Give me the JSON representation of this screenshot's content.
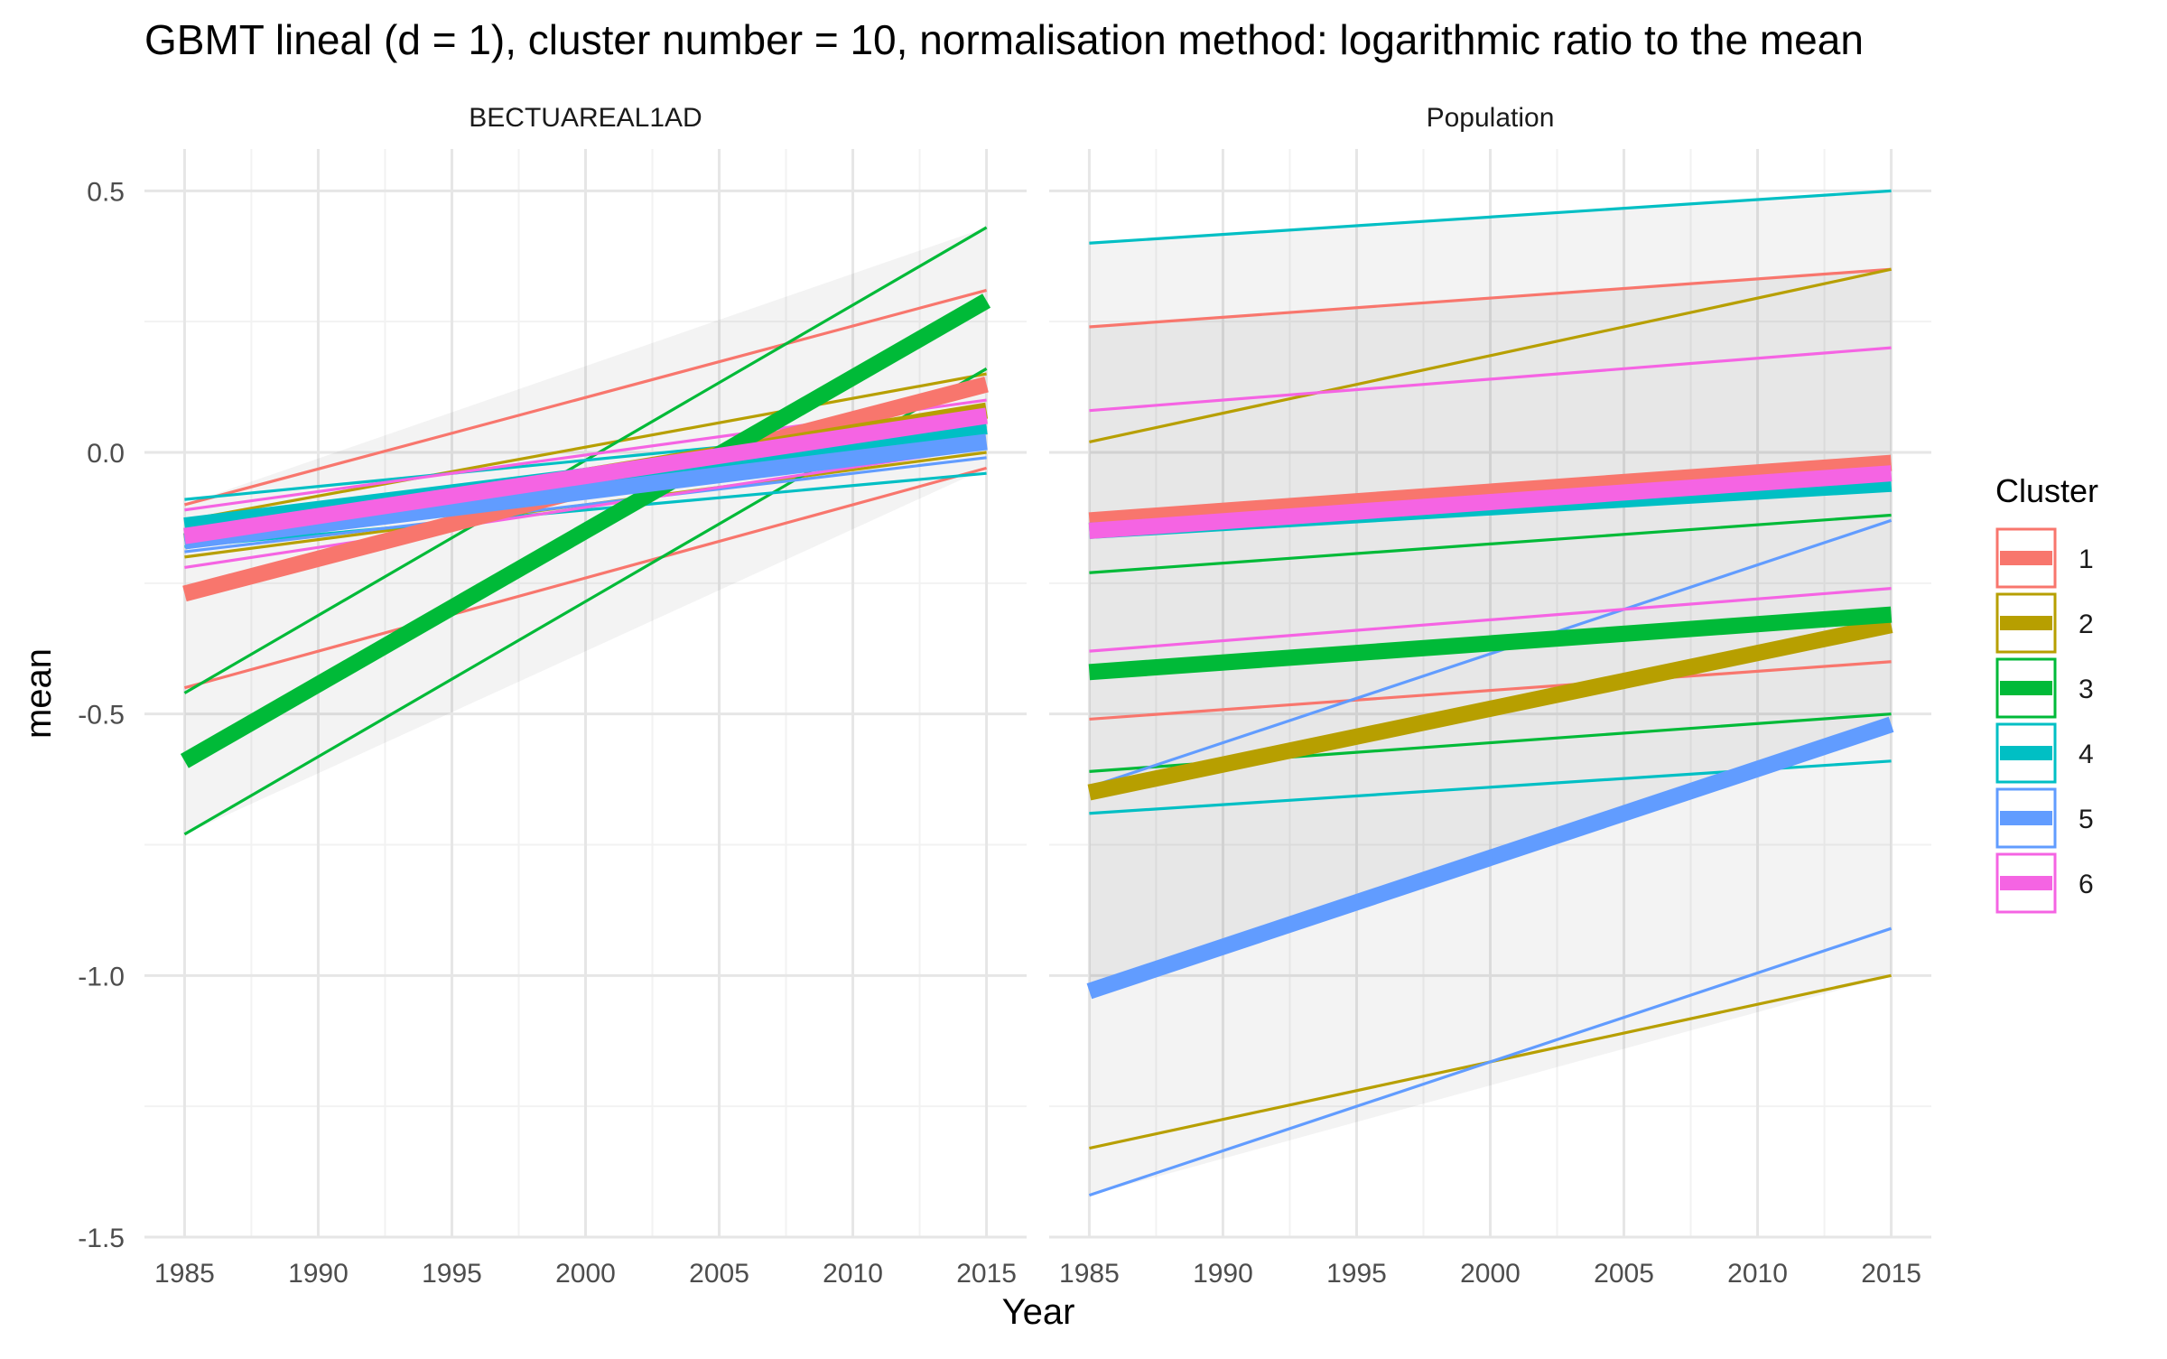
{
  "chart_data": {
    "type": "line",
    "title": "GBMT lineal (d = 1), cluster number = 10, normalisation method: logarithmic ratio to the mean",
    "xlabel": "Year",
    "ylabel": "mean",
    "xlim": [
      1983.5,
      2016.5
    ],
    "ylim": [
      -1.5,
      0.58
    ],
    "x_ticks": [
      1985,
      1990,
      1995,
      2000,
      2005,
      2010,
      2015
    ],
    "y_ticks": [
      -1.5,
      -1.0,
      -0.5,
      0.0,
      0.5
    ],
    "y_tick_labels": [
      "-1.5",
      "-1.0",
      "-0.5",
      "0.0",
      "0.5"
    ],
    "grid": true,
    "legend_title": "Cluster",
    "legend_position": "right",
    "legend": [
      {
        "label": "1",
        "color": "#F8766D"
      },
      {
        "label": "2",
        "color": "#B79F00"
      },
      {
        "label": "3",
        "color": "#00BA38"
      },
      {
        "label": "4",
        "color": "#00BFC4"
      },
      {
        "label": "5",
        "color": "#619CFF"
      },
      {
        "label": "6",
        "color": "#F564E3"
      }
    ],
    "panels": [
      {
        "name": "BECTUAREAL1AD",
        "bands": [
          {
            "x": [
              1985,
              2015
            ],
            "upper": [
              -0.1,
              0.43
            ],
            "lower": [
              -0.73,
              -0.03
            ]
          }
        ],
        "series": [
          {
            "cluster": "1",
            "kind": "mean",
            "x": [
              1985,
              2015
            ],
            "y": [
              -0.27,
              0.13
            ]
          },
          {
            "cluster": "1",
            "kind": "upper",
            "x": [
              1985,
              2015
            ],
            "y": [
              -0.1,
              0.31
            ]
          },
          {
            "cluster": "1",
            "kind": "lower",
            "x": [
              1985,
              2015
            ],
            "y": [
              -0.45,
              -0.03
            ]
          },
          {
            "cluster": "2",
            "kind": "mean",
            "x": [
              1985,
              2015
            ],
            "y": [
              -0.17,
              0.08
            ]
          },
          {
            "cluster": "2",
            "kind": "upper",
            "x": [
              1985,
              2015
            ],
            "y": [
              -0.13,
              0.15
            ]
          },
          {
            "cluster": "2",
            "kind": "lower",
            "x": [
              1985,
              2015
            ],
            "y": [
              -0.2,
              0.0
            ]
          },
          {
            "cluster": "3",
            "kind": "mean",
            "x": [
              1985,
              2015
            ],
            "y": [
              -0.59,
              0.29
            ]
          },
          {
            "cluster": "3",
            "kind": "upper",
            "x": [
              1985,
              2015
            ],
            "y": [
              -0.46,
              0.43
            ]
          },
          {
            "cluster": "3",
            "kind": "lower",
            "x": [
              1985,
              2015
            ],
            "y": [
              -0.73,
              0.16
            ]
          },
          {
            "cluster": "4",
            "kind": "mean",
            "x": [
              1985,
              2015
            ],
            "y": [
              -0.14,
              0.05
            ]
          },
          {
            "cluster": "4",
            "kind": "upper",
            "x": [
              1985,
              2015
            ],
            "y": [
              -0.09,
              0.06
            ]
          },
          {
            "cluster": "4",
            "kind": "lower",
            "x": [
              1985,
              2015
            ],
            "y": [
              -0.18,
              -0.04
            ]
          },
          {
            "cluster": "5",
            "kind": "mean",
            "x": [
              1985,
              2015
            ],
            "y": [
              -0.17,
              0.02
            ]
          },
          {
            "cluster": "5",
            "kind": "upper",
            "x": [
              1985,
              2015
            ],
            "y": [
              -0.15,
              0.05
            ]
          },
          {
            "cluster": "5",
            "kind": "lower",
            "x": [
              1985,
              2015
            ],
            "y": [
              -0.19,
              -0.01
            ]
          },
          {
            "cluster": "6",
            "kind": "mean",
            "x": [
              1985,
              2015
            ],
            "y": [
              -0.16,
              0.07
            ]
          },
          {
            "cluster": "6",
            "kind": "upper",
            "x": [
              1985,
              2015
            ],
            "y": [
              -0.11,
              0.1
            ]
          },
          {
            "cluster": "6",
            "kind": "lower",
            "x": [
              1985,
              2015
            ],
            "y": [
              -0.22,
              0.01
            ]
          }
        ]
      },
      {
        "name": "Population",
        "bands": [
          {
            "x": [
              1985,
              2015
            ],
            "upper": [
              0.4,
              0.5
            ],
            "lower": [
              -1.42,
              -1.0
            ]
          },
          {
            "x": [
              1985,
              2015
            ],
            "upper": [
              0.24,
              0.35
            ],
            "lower": [
              -1.03,
              -0.52
            ]
          }
        ],
        "series": [
          {
            "cluster": "1",
            "kind": "mean",
            "x": [
              1985,
              2015
            ],
            "y": [
              -0.13,
              -0.02
            ]
          },
          {
            "cluster": "1",
            "kind": "upper",
            "x": [
              1985,
              2015
            ],
            "y": [
              0.24,
              0.35
            ]
          },
          {
            "cluster": "1",
            "kind": "lower",
            "x": [
              1985,
              2015
            ],
            "y": [
              -0.51,
              -0.4
            ]
          },
          {
            "cluster": "2",
            "kind": "mean",
            "x": [
              1985,
              2015
            ],
            "y": [
              -0.65,
              -0.33
            ]
          },
          {
            "cluster": "2",
            "kind": "upper",
            "x": [
              1985,
              2015
            ],
            "y": [
              0.02,
              0.35
            ]
          },
          {
            "cluster": "2",
            "kind": "lower",
            "x": [
              1985,
              2015
            ],
            "y": [
              -1.33,
              -1.0
            ]
          },
          {
            "cluster": "3",
            "kind": "mean",
            "x": [
              1985,
              2015
            ],
            "y": [
              -0.42,
              -0.31
            ]
          },
          {
            "cluster": "3",
            "kind": "upper",
            "x": [
              1985,
              2015
            ],
            "y": [
              -0.23,
              -0.12
            ]
          },
          {
            "cluster": "3",
            "kind": "lower",
            "x": [
              1985,
              2015
            ],
            "y": [
              -0.61,
              -0.5
            ]
          },
          {
            "cluster": "4",
            "kind": "mean",
            "x": [
              1985,
              2015
            ],
            "y": [
              -0.15,
              -0.06
            ]
          },
          {
            "cluster": "4",
            "kind": "upper",
            "x": [
              1985,
              2015
            ],
            "y": [
              0.4,
              0.5
            ]
          },
          {
            "cluster": "4",
            "kind": "lower",
            "x": [
              1985,
              2015
            ],
            "y": [
              -0.69,
              -0.59
            ]
          },
          {
            "cluster": "5",
            "kind": "mean",
            "x": [
              1985,
              2015
            ],
            "y": [
              -1.03,
              -0.52
            ]
          },
          {
            "cluster": "5",
            "kind": "upper",
            "x": [
              1985,
              2015
            ],
            "y": [
              -0.64,
              -0.13
            ]
          },
          {
            "cluster": "5",
            "kind": "lower",
            "x": [
              1985,
              2015
            ],
            "y": [
              -1.42,
              -0.91
            ]
          },
          {
            "cluster": "6",
            "kind": "mean",
            "x": [
              1985,
              2015
            ],
            "y": [
              -0.15,
              -0.04
            ]
          },
          {
            "cluster": "6",
            "kind": "upper",
            "x": [
              1985,
              2015
            ],
            "y": [
              0.08,
              0.2
            ]
          },
          {
            "cluster": "6",
            "kind": "lower",
            "x": [
              1985,
              2015
            ],
            "y": [
              -0.38,
              -0.26
            ]
          }
        ]
      }
    ]
  }
}
